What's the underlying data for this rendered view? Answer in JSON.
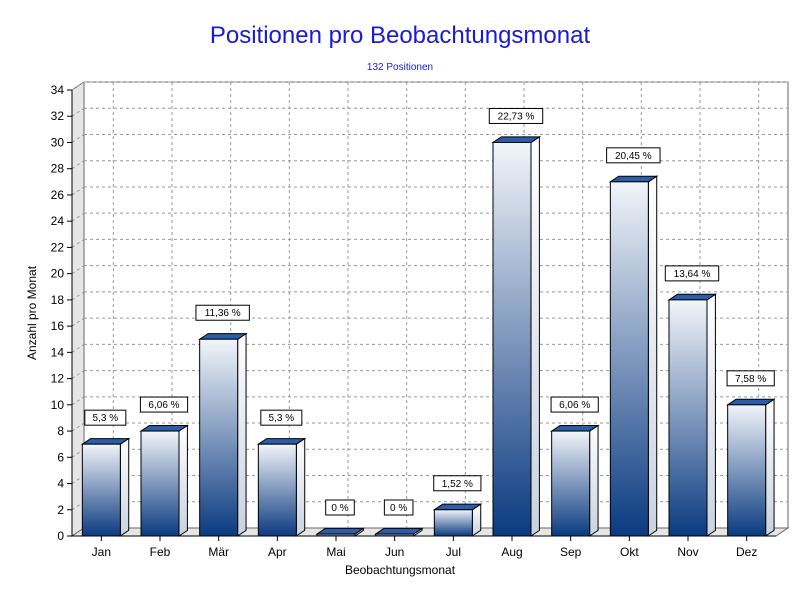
{
  "chart_data": {
    "type": "bar",
    "title": "Positionen pro Beobachtungsmonat",
    "subtitle": "132 Positionen",
    "xlabel": "Beobachtungsmonat",
    "ylabel": "Anzahl pro Monat",
    "categories": [
      "Jan",
      "Feb",
      "Mär",
      "Apr",
      "Mai",
      "Jun",
      "Jul",
      "Aug",
      "Sep",
      "Okt",
      "Nov",
      "Dez"
    ],
    "values": [
      7,
      8,
      15,
      7,
      0,
      0,
      2,
      30,
      8,
      27,
      18,
      10
    ],
    "data_labels": [
      "5,3 %",
      "6,06 %",
      "11,36 %",
      "5,3 %",
      "0 %",
      "0 %",
      "1,52 %",
      "22,73 %",
      "6,06 %",
      "20,45 %",
      "13,64 %",
      "7,58 %"
    ],
    "ylim": [
      0,
      34
    ],
    "yticks": [
      0,
      2,
      4,
      6,
      8,
      10,
      12,
      14,
      16,
      18,
      20,
      22,
      24,
      26,
      28,
      30,
      32,
      34
    ],
    "grid": true,
    "colors": {
      "title": "#1a1ad6",
      "bar_top": "#f2f5fa",
      "bar_bottom": "#0a3a80",
      "grid": "#999999"
    }
  }
}
